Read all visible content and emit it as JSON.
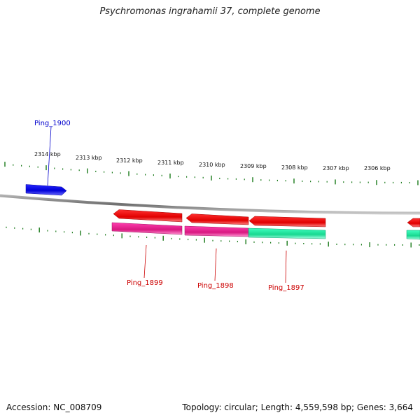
{
  "title": "Psychromonas ingrahamii 37, complete genome",
  "footer": {
    "accession": "Accession: NC_008709",
    "summary": "Topology: circular; Length: 4,559,598 bp; Genes: 3,664"
  },
  "colors": {
    "backbone": "#8a8a8a",
    "tick": "#1a7a1a",
    "forward_gene": "#0000e0",
    "forward_label": "#0000cc",
    "reverse_gene": "#ee0000",
    "reverse_label": "#cc0000",
    "cds_magenta": "#e0208c",
    "cds_teal": "#20e0a0"
  },
  "scale_labels": [
    {
      "kbp": 2314,
      "text": "2314 kbp"
    },
    {
      "kbp": 2313,
      "text": "2313 kbp"
    },
    {
      "kbp": 2312,
      "text": "2312 kbp"
    },
    {
      "kbp": 2311,
      "text": "2311 kbp"
    },
    {
      "kbp": 2310,
      "text": "2310 kbp"
    },
    {
      "kbp": 2309,
      "text": "2309 kbp"
    },
    {
      "kbp": 2308,
      "text": "2308 kbp"
    },
    {
      "kbp": 2307,
      "text": "2307 kbp"
    },
    {
      "kbp": 2306,
      "text": "2306 kbp"
    }
  ],
  "genes": [
    {
      "name": "Ping_1900",
      "strand": "forward"
    },
    {
      "name": "Ping_1899",
      "strand": "reverse"
    },
    {
      "name": "Ping_1898",
      "strand": "reverse"
    },
    {
      "name": "Ping_1897",
      "strand": "reverse"
    }
  ]
}
